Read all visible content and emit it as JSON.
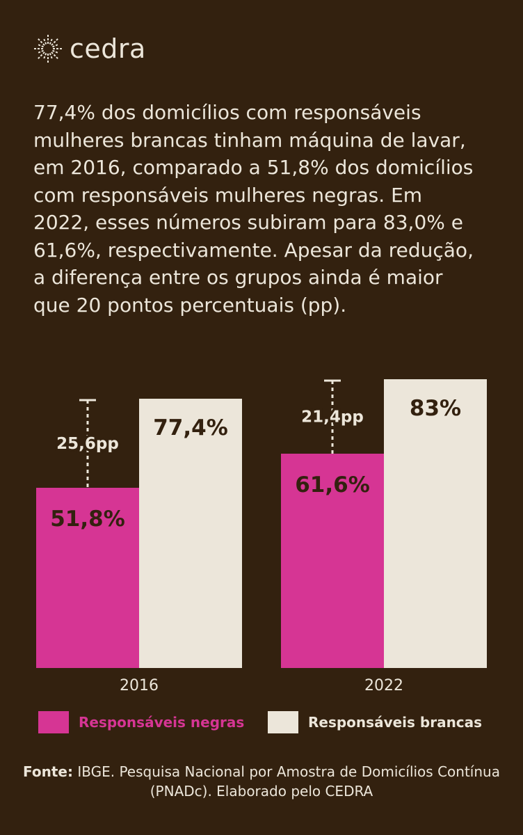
{
  "brand": {
    "name": "cedra",
    "icon": "sunburst-icon",
    "color": "#ece6da"
  },
  "intro_text": "77,4% dos domicílios com responsáveis mulheres brancas tinham máquina de lavar, em 2016, comparado a 51,8% dos domicílios com responsáveis mulheres negras. Em 2022, esses números subiram para 83,0% e 61,6%, respectivamente. Apesar da redução, a diferença entre os grupos ainda é maior que 20 pontos percentuais (pp).",
  "colors": {
    "background": "#33210f",
    "negras": "#d63594",
    "brancas": "#ece6da",
    "text_light": "#ece6da",
    "text_dark": "#33210f"
  },
  "chart_data": {
    "type": "bar",
    "categories": [
      "2016",
      "2022"
    ],
    "series": [
      {
        "name": "Responsáveis negras",
        "values": [
          51.8,
          61.6
        ],
        "labels": [
          "51,8%",
          "61,6%"
        ],
        "color": "#d63594"
      },
      {
        "name": "Responsáveis brancas",
        "values": [
          77.4,
          83.0
        ],
        "labels": [
          "77,4%",
          "83%"
        ],
        "color": "#ece6da"
      }
    ],
    "gaps": [
      {
        "category": "2016",
        "label": "25,6pp",
        "value": 25.6
      },
      {
        "category": "2022",
        "label": "21,4pp",
        "value": 21.4
      }
    ],
    "ylim": [
      0,
      100
    ],
    "grid": false,
    "legend": "bottom"
  },
  "source": {
    "prefix": "Fonte:",
    "text": " IBGE. Pesquisa Nacional por Amostra de Domicílios Contínua (PNADc). Elaborado pelo CEDRA"
  }
}
